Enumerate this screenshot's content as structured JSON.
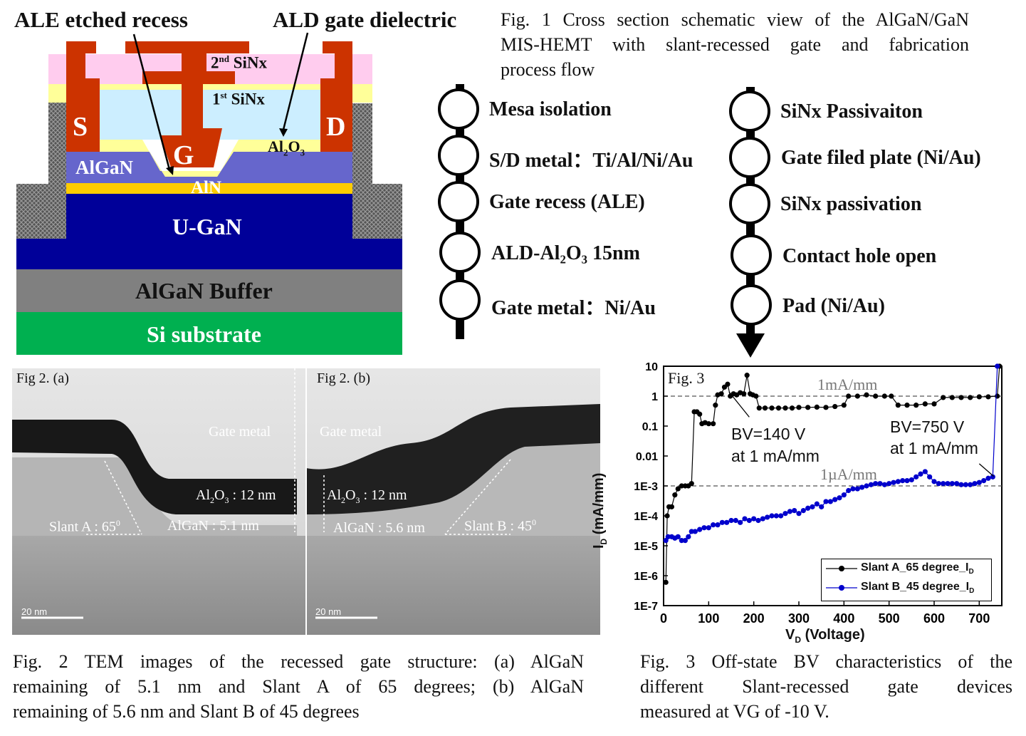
{
  "fig1": {
    "caption": [
      "Fig. 1 Cross section schematic view of the AlGaN/GaN",
      "MIS-HEMT with slant-recessed gate and fabrication",
      "process flow"
    ],
    "annotations": {
      "recess": "ALE etched recess",
      "dielectric": "ALD gate dielectric"
    },
    "layers": {
      "sin2_base": "2",
      "sin2_sup": "nd",
      "sin2_rest": " SiNx",
      "sin1_base": "1",
      "sin1_sup": "st",
      "sin1_rest": " SiNx",
      "source": "S",
      "drain": "D",
      "gate": "G",
      "al2o3_a": "Al",
      "al2o3_sub1": "2",
      "al2o3_b": "O",
      "al2o3_sub2": "3",
      "algan": "AlGaN",
      "aln": "AlN",
      "ugan": "U-GaN",
      "buffer": "AlGaN Buffer",
      "substrate": "Si substrate"
    },
    "colors": {
      "metal": "#CC3300",
      "sin2": "#FFCCEE",
      "sin1": "#CCEEFF",
      "al2o3": "#FFFF99",
      "algan": "#6666CC",
      "aln": "#FFCC00",
      "ugan": "#000099",
      "buffer": "#808080",
      "substrate": "#00B050"
    },
    "flow_left": [
      "Mesa isolation",
      "S/D metal：Ti/Al/Ni/Au",
      "Gate recess (ALE)",
      "ALD-Al₂O₃ 15nm",
      "Gate metal：Ni/Au"
    ],
    "flow_right": [
      "SiNx Passivaiton",
      "Gate filed plate (Ni/Au)",
      "SiNx passivation",
      "Contact hole open",
      "Pad (Ni/Au)"
    ]
  },
  "fig2": {
    "label_a": "Fig 2. (a)",
    "label_b": "Fig 2. (b)",
    "gate_metal": "Gate metal",
    "al2o3_a": "Al",
    "al2o3_sub1": "2",
    "al2o3_b": "O",
    "al2o3_sub2": "3",
    "al2o3_val": " : 12 nm",
    "algan_a": "AlGaN : 5.1 nm",
    "algan_b": "AlGaN : 5.6 nm",
    "slant_a_text": "Slant A : 65",
    "slant_a_sup": "0",
    "slant_b_text": "Slant B : 45",
    "slant_b_sup": "0",
    "scale": "20 nm",
    "caption": [
      "Fig. 2 TEM images of the recessed gate structure: (a) AlGaN",
      "remaining of 5.1 nm and Slant A of 65 degrees; (b) AlGaN",
      "remaining of 5.6 nm and Slant B of 45 degrees"
    ]
  },
  "fig3": {
    "label": "Fig. 3",
    "caption": [
      "Fig. 3 Off-state BV characteristics of the",
      "different Slant-recessed gate devices",
      "measured at VG of -10 V."
    ]
  },
  "chart_data": {
    "type": "scatter",
    "title": "Fig. 3",
    "xlabel": "V_D (Voltage)",
    "ylabel": "I_D (mA/mm)",
    "xlim": [
      0,
      750
    ],
    "ylim": [
      1e-07,
      10
    ],
    "yscale": "log",
    "xticks": [
      "0",
      "100",
      "200",
      "300",
      "400",
      "500",
      "600",
      "700"
    ],
    "yticks": [
      "10",
      "1",
      "0.1",
      "0.01",
      "1E-3",
      "1E-4",
      "1E-5",
      "1E-6",
      "1E-7"
    ],
    "reference_lines": [
      {
        "y": 1,
        "label": "1mA/mm"
      },
      {
        "y": 0.001,
        "label": "1µA/mm"
      }
    ],
    "annotations": [
      {
        "line1": "BV=140 V",
        "line2": "at 1 mA/mm"
      },
      {
        "line1": "BV=750 V",
        "line2": "at 1 mA/mm"
      }
    ],
    "legend": "bottom-right",
    "series": [
      {
        "name_base": "Slant A_65 degree_I",
        "name_sub": "D",
        "color": "#000000",
        "points": [
          [
            5,
            6e-07
          ],
          [
            8,
            0.0001
          ],
          [
            12,
            0.0002
          ],
          [
            18,
            0.0002
          ],
          [
            25,
            0.0005
          ],
          [
            32,
            0.0008
          ],
          [
            40,
            0.001
          ],
          [
            48,
            0.001
          ],
          [
            55,
            0.001
          ],
          [
            62,
            0.0012
          ],
          [
            68,
            0.3
          ],
          [
            74,
            0.3
          ],
          [
            80,
            0.25
          ],
          [
            85,
            0.12
          ],
          [
            92,
            0.13
          ],
          [
            100,
            0.12
          ],
          [
            110,
            0.12
          ],
          [
            115,
            0.5
          ],
          [
            120,
            1.1
          ],
          [
            128,
            1.2
          ],
          [
            135,
            2
          ],
          [
            142,
            2.5
          ],
          [
            148,
            1
          ],
          [
            155,
            1.2
          ],
          [
            162,
            1.1
          ],
          [
            170,
            1.3
          ],
          [
            178,
            1.2
          ],
          [
            185,
            5
          ],
          [
            192,
            1.2
          ],
          [
            198,
            1.1
          ],
          [
            205,
            1
          ],
          [
            212,
            0.4
          ],
          [
            225,
            0.4
          ],
          [
            240,
            0.4
          ],
          [
            255,
            0.4
          ],
          [
            270,
            0.4
          ],
          [
            285,
            0.4
          ],
          [
            300,
            0.42
          ],
          [
            320,
            0.42
          ],
          [
            340,
            0.43
          ],
          [
            360,
            0.42
          ],
          [
            380,
            0.45
          ],
          [
            400,
            0.5
          ],
          [
            410,
            1
          ],
          [
            430,
            1
          ],
          [
            450,
            1.1
          ],
          [
            470,
            1
          ],
          [
            490,
            1
          ],
          [
            505,
            1
          ],
          [
            520,
            0.5
          ],
          [
            540,
            0.5
          ],
          [
            560,
            0.5
          ],
          [
            580,
            0.55
          ],
          [
            600,
            0.55
          ],
          [
            620,
            0.9
          ],
          [
            640,
            0.9
          ],
          [
            660,
            0.9
          ],
          [
            680,
            0.9
          ],
          [
            700,
            0.95
          ],
          [
            720,
            0.95
          ],
          [
            740,
            1
          ],
          [
            745,
            10
          ]
        ]
      },
      {
        "name_base": "Slant B_45 degree_I",
        "name_sub": "D",
        "color": "#0000CC",
        "points": [
          [
            5,
            1.5e-05
          ],
          [
            10,
            2e-05
          ],
          [
            18,
            2e-05
          ],
          [
            25,
            1.8e-05
          ],
          [
            32,
            2e-05
          ],
          [
            40,
            1.5e-05
          ],
          [
            48,
            1.5e-05
          ],
          [
            55,
            2e-05
          ],
          [
            62,
            3e-05
          ],
          [
            70,
            3e-05
          ],
          [
            80,
            3.5e-05
          ],
          [
            90,
            4e-05
          ],
          [
            100,
            4e-05
          ],
          [
            110,
            5e-05
          ],
          [
            120,
            5e-05
          ],
          [
            130,
            6e-05
          ],
          [
            140,
            6e-05
          ],
          [
            150,
            7e-05
          ],
          [
            160,
            7e-05
          ],
          [
            170,
            6e-05
          ],
          [
            180,
            8e-05
          ],
          [
            190,
            7e-05
          ],
          [
            200,
            8e-05
          ],
          [
            210,
            7e-05
          ],
          [
            220,
            8e-05
          ],
          [
            230,
            9e-05
          ],
          [
            240,
            0.0001
          ],
          [
            250,
            0.0001
          ],
          [
            260,
            0.0001
          ],
          [
            270,
            0.00012
          ],
          [
            280,
            0.00014
          ],
          [
            290,
            0.00015
          ],
          [
            300,
            0.00012
          ],
          [
            310,
            0.00015
          ],
          [
            320,
            0.00018
          ],
          [
            330,
            0.0002
          ],
          [
            340,
            0.00025
          ],
          [
            350,
            0.0002
          ],
          [
            360,
            0.0003
          ],
          [
            370,
            0.0003
          ],
          [
            380,
            0.00035
          ],
          [
            390,
            0.0004
          ],
          [
            400,
            0.0005
          ],
          [
            410,
            0.0007
          ],
          [
            420,
            0.0008
          ],
          [
            430,
            0.0008
          ],
          [
            440,
            0.0009
          ],
          [
            450,
            0.001
          ],
          [
            460,
            0.0011
          ],
          [
            470,
            0.0012
          ],
          [
            480,
            0.0012
          ],
          [
            490,
            0.0011
          ],
          [
            500,
            0.0012
          ],
          [
            510,
            0.0013
          ],
          [
            520,
            0.0014
          ],
          [
            530,
            0.0015
          ],
          [
            540,
            0.0015
          ],
          [
            550,
            0.0016
          ],
          [
            560,
            0.002
          ],
          [
            570,
            0.0025
          ],
          [
            580,
            0.003
          ],
          [
            590,
            0.002
          ],
          [
            600,
            0.0014
          ],
          [
            610,
            0.0012
          ],
          [
            620,
            0.0012
          ],
          [
            630,
            0.0012
          ],
          [
            640,
            0.0012
          ],
          [
            650,
            0.0012
          ],
          [
            660,
            0.0011
          ],
          [
            670,
            0.0011
          ],
          [
            680,
            0.0011
          ],
          [
            690,
            0.0012
          ],
          [
            700,
            0.0013
          ],
          [
            710,
            0.0015
          ],
          [
            720,
            0.0018
          ],
          [
            730,
            0.002
          ],
          [
            740,
            10
          ]
        ]
      }
    ]
  }
}
